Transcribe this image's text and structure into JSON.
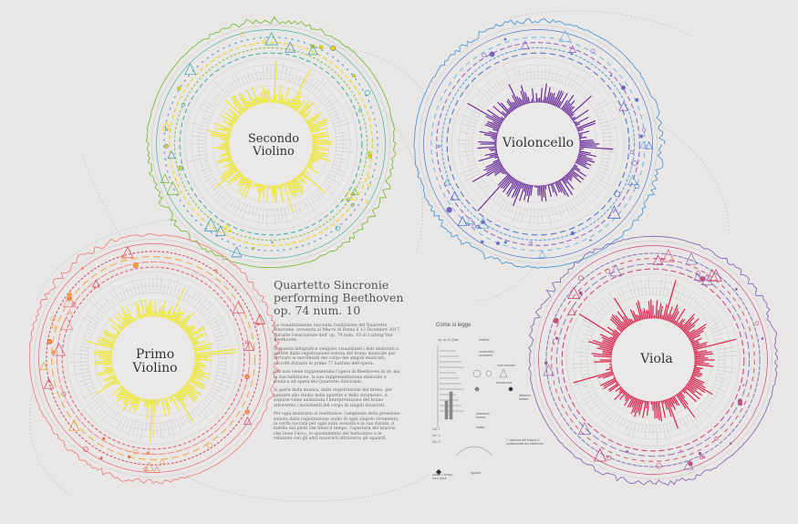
{
  "title": "Quartetto Sincronie performing Beethoven op. 74 num. 10",
  "paragraphs": [
    "La visualizzazione racconta l'esibizione del Quartetto Sincronie, avvenuta al Macro di Roma il 13 Dicembre 2017, durante l'esecuzione dell' op. 74 num. 10 di Ludwig Van Beethoven.",
    "In questa infografica vengono visualizzati i dati elaborati a partire dalla registrazione sonora del brano musicale per arrivare ai movimenti del corpo dei singoli musicisti, raccolti durante le prime 77 battute dell'opera.",
    "Qui non viene rappresentata l'opera di Beethoven in sé, ma la sua esibizione, la sua rappresentazione musicale e scenica ad opera del Quartetto Sincronie.",
    "Si parte dalla musica, dalla registrazione del brano, per passare allo studio dello spartito e dello strumento. A seguire viene analizzata l'interpretazione del brano attraverso i movimenti del corpo di singoli musicisti.",
    "Per ogni musicista si restituisce: l'ampiezza della pressione sonora dalla registrazione audio di ogni singolo strumento, la corda toccata per ogni nota suonata e la sua durata, il battito dei piedi che tiene il tempo, l'apertura del braccio che tiene l'arco, lo spostamento del baricentro e le relazioni con gli altri musicisti attraverso gli sguardi."
  ],
  "circles": [
    {
      "name": "circle-secondo-violino",
      "line1": "Secondo",
      "line2": "Violino",
      "bar_color": "#ece62f",
      "ring_colors": [
        "#2ea6a0",
        "#7dbb3a",
        "#f0d000",
        "#3d8ec9"
      ]
    },
    {
      "name": "circle-violoncello",
      "line1": "Violoncello",
      "line2": "",
      "bar_color": "#6a2e9a",
      "ring_colors": [
        "#3a62c8",
        "#4f9ad6",
        "#8a58b8",
        "#6ab0e0"
      ]
    },
    {
      "name": "circle-primo-violino",
      "line1": "Primo",
      "line2": "Violino",
      "bar_color": "#ece62f",
      "ring_colors": [
        "#e24a5e",
        "#f08080",
        "#f0a030",
        "#d23a50"
      ]
    },
    {
      "name": "circle-viola",
      "line1": "Viola",
      "line2": "",
      "bar_color": "#d8234c",
      "ring_colors": [
        "#c4306a",
        "#8a6ab8",
        "#d24a6a",
        "#7f6fb0"
      ]
    }
  ],
  "legend": {
    "title": "Come si legge",
    "labels": {
      "tempo": "op. no 10 Quar",
      "timeline": "timeline",
      "corda": "corda dello strumento",
      "note": "note musicali",
      "durata": "durata nota",
      "pressione": "pressione sonora",
      "distanza": "distanza battere",
      "battito": "battito",
      "apertura": "1. apertura del braccio 2. spostamento del baricentro",
      "sguardi": "sguardi",
      "pausa": "pausa 1 tempo con i piedi",
      "tick1": "Voi. 1",
      "tick2": "Voi. 2",
      "tick3": "Voi. 3"
    }
  }
}
